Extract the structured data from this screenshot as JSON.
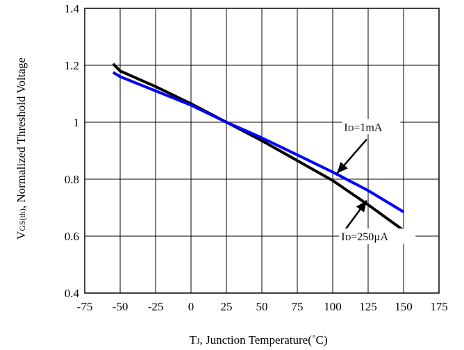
{
  "chart_data": {
    "type": "line",
    "title": "",
    "xlabel": {
      "main": "T",
      "sub": "J",
      "rest": ", Junction Temperature(˚C)"
    },
    "ylabel": {
      "main": "V",
      "sub": "GS(th)",
      "rest": ", Normalized Threshold Voltage"
    },
    "xlim": [
      -75,
      175
    ],
    "ylim": [
      0.4,
      1.4
    ],
    "xticks": [
      -75,
      -50,
      -25,
      0,
      25,
      50,
      75,
      100,
      125,
      150,
      175
    ],
    "yticks": [
      0.4,
      0.6,
      0.8,
      1,
      1.2,
      1.4
    ],
    "xtick_labels": [
      "-75",
      "-50",
      "-25",
      "0",
      "25",
      "50",
      "75",
      "100",
      "125",
      "150",
      "175"
    ],
    "ytick_labels": [
      "0.4",
      "0.6",
      "0.8",
      "1",
      "1.2",
      "1.4"
    ],
    "grid": true,
    "legend": "none",
    "series": [
      {
        "name": "ID=250µA",
        "color": "#000000",
        "x": [
          -55,
          -50,
          -25,
          0,
          25,
          50,
          75,
          100,
          125,
          150
        ],
        "y": [
          1.205,
          1.18,
          1.125,
          1.065,
          1.0,
          0.935,
          0.865,
          0.795,
          0.71,
          0.62
        ]
      },
      {
        "name": "ID=1mA",
        "color": "#0000ff",
        "x": [
          -55,
          -50,
          -25,
          0,
          25,
          50,
          75,
          100,
          125,
          150
        ],
        "y": [
          1.175,
          1.16,
          1.11,
          1.06,
          1.0,
          0.945,
          0.885,
          0.825,
          0.76,
          0.685
        ]
      }
    ],
    "annotations": [
      {
        "main": "I",
        "sub": "D",
        "rest": "=1mA",
        "text_at": [
          108,
          0.97
        ],
        "arrow_from": [
          124,
          0.94
        ],
        "arrow_to": [
          103,
          0.82
        ]
      },
      {
        "main": "I",
        "sub": "D",
        "rest": "=250µA",
        "text_at": [
          106,
          0.585
        ],
        "arrow_from": [
          107,
          0.61
        ],
        "arrow_to": [
          124,
          0.725
        ]
      }
    ]
  }
}
